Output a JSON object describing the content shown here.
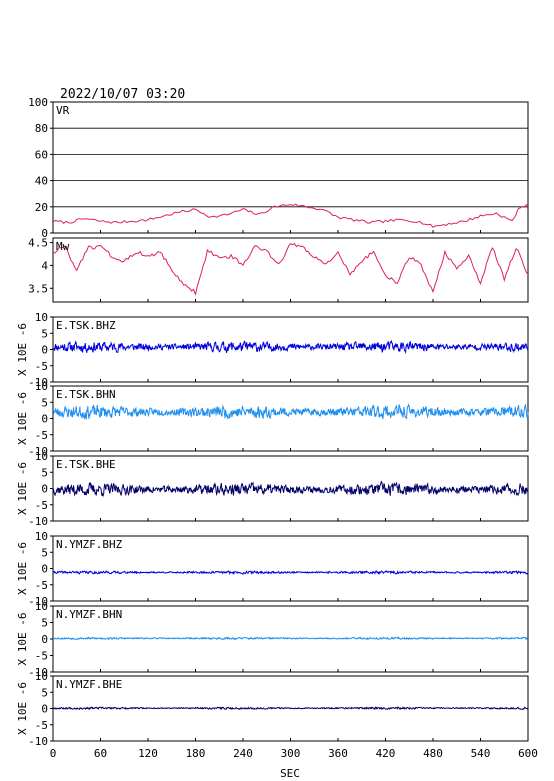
{
  "header": {
    "timestamp": "2022/10/07 03:20"
  },
  "axes": {
    "x_label": "SEC",
    "x_ticks": [
      0,
      60,
      120,
      180,
      240,
      300,
      360,
      420,
      480,
      540,
      600
    ],
    "xlim": [
      0,
      600
    ],
    "y_unit_label": "X 10E -6"
  },
  "colors": {
    "vr": "#dd2255",
    "mw": "#dd2255",
    "bhz": "#0000dd",
    "bhn": "#1e8fee",
    "bhe": "#000066",
    "frame": "#000000",
    "grid": "#000000"
  },
  "chart_data": [
    {
      "type": "line",
      "panel": "vr",
      "label": "VR",
      "ylim": [
        0,
        100
      ],
      "y_ticks": [
        0,
        20,
        40,
        60,
        80,
        100
      ],
      "grid": true,
      "x": [
        0,
        20,
        40,
        60,
        80,
        100,
        120,
        140,
        160,
        180,
        200,
        220,
        240,
        260,
        280,
        300,
        320,
        340,
        360,
        380,
        400,
        420,
        440,
        460,
        480,
        500,
        520,
        540,
        560,
        580,
        590,
        600
      ],
      "values": [
        9,
        8,
        11,
        9,
        8,
        9,
        10,
        13,
        16,
        18,
        12,
        14,
        18,
        14,
        20,
        22,
        20,
        18,
        12,
        10,
        8,
        9,
        10,
        9,
        5,
        7,
        9,
        13,
        15,
        9,
        20,
        21
      ]
    },
    {
      "type": "line",
      "panel": "mw",
      "label": "Mw",
      "ylim": [
        3.2,
        4.6
      ],
      "y_ticks": [
        3.5,
        4.0,
        4.5
      ],
      "grid": false,
      "x": [
        0,
        15,
        30,
        45,
        60,
        75,
        90,
        105,
        120,
        135,
        150,
        165,
        180,
        195,
        210,
        225,
        240,
        255,
        270,
        285,
        300,
        315,
        330,
        345,
        360,
        375,
        390,
        405,
        420,
        435,
        450,
        465,
        480,
        495,
        510,
        525,
        540,
        555,
        570,
        585,
        600
      ],
      "values": [
        4.3,
        4.4,
        3.9,
        4.4,
        4.4,
        4.2,
        4.1,
        4.3,
        4.2,
        4.3,
        3.9,
        3.6,
        3.4,
        4.3,
        4.2,
        4.2,
        4.0,
        4.4,
        4.3,
        4.0,
        4.5,
        4.4,
        4.2,
        4.0,
        4.3,
        3.8,
        4.1,
        4.3,
        3.8,
        3.6,
        4.2,
        4.0,
        3.4,
        4.3,
        3.9,
        4.2,
        3.6,
        4.4,
        3.7,
        4.4,
        3.8
      ]
    },
    {
      "type": "line",
      "panel": "E.TSK.BHZ",
      "label": "E.TSK.BHZ",
      "ylim": [
        -10,
        10
      ],
      "y_ticks": [
        -10,
        -5,
        0,
        5,
        10
      ],
      "baseline": 0.8,
      "amplitude": 1.6,
      "color_key": "bhz",
      "seed": 11
    },
    {
      "type": "line",
      "panel": "E.TSK.BHN",
      "label": "E.TSK.BHN",
      "ylim": [
        -10,
        10
      ],
      "y_ticks": [
        -10,
        -5,
        0,
        5,
        10
      ],
      "baseline": 2.0,
      "amplitude": 2.0,
      "color_key": "bhn",
      "seed": 23
    },
    {
      "type": "line",
      "panel": "E.TSK.BHE",
      "label": "E.TSK.BHE",
      "ylim": [
        -10,
        10
      ],
      "y_ticks": [
        -10,
        -5,
        0,
        5,
        10
      ],
      "baseline": -0.3,
      "amplitude": 1.9,
      "color_key": "bhe",
      "seed": 37
    },
    {
      "type": "line",
      "panel": "N.YMZF.BHZ",
      "label": "N.YMZF.BHZ",
      "ylim": [
        -10,
        10
      ],
      "y_ticks": [
        -10,
        -5,
        0,
        5,
        10
      ],
      "baseline": -1.2,
      "amplitude": 0.4,
      "color_key": "bhz",
      "seed": 41
    },
    {
      "type": "line",
      "panel": "N.YMZF.BHN",
      "label": "N.YMZF.BHN",
      "ylim": [
        -10,
        10
      ],
      "y_ticks": [
        -10,
        -5,
        0,
        5,
        10
      ],
      "baseline": 0.2,
      "amplitude": 0.3,
      "color_key": "bhn",
      "seed": 53
    },
    {
      "type": "line",
      "panel": "N.YMZF.BHE",
      "label": "N.YMZF.BHE",
      "ylim": [
        -10,
        10
      ],
      "y_ticks": [
        -10,
        -5,
        0,
        5,
        10
      ],
      "baseline": 0.1,
      "amplitude": 0.3,
      "color_key": "bhe",
      "seed": 67
    }
  ]
}
